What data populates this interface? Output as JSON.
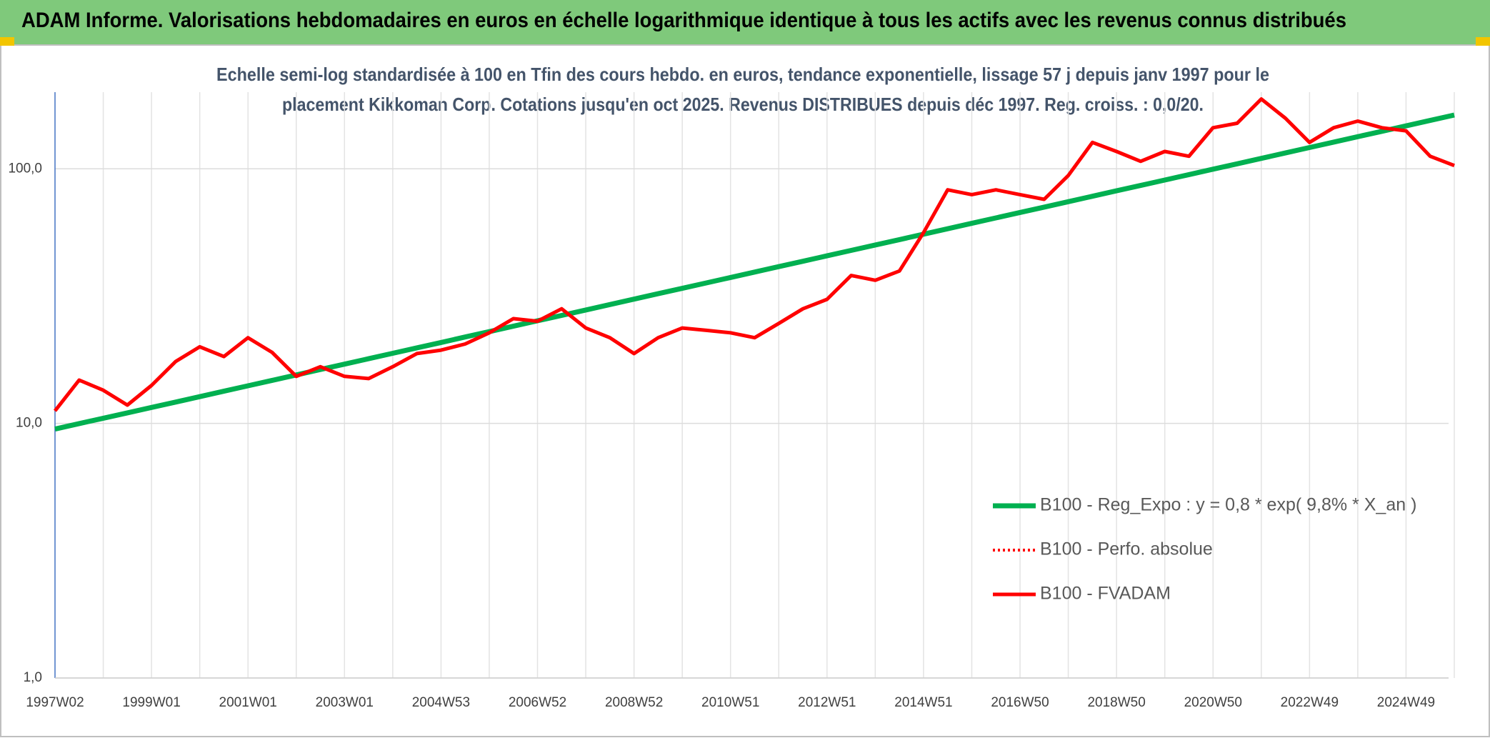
{
  "chart_data": {
    "type": "line",
    "title": "ADAM Informe. Valorisations hebdomadaires en euros en échelle logarithmique identique à tous les actifs avec les revenus connus distribués",
    "subtitle": [
      "Echelle semi-log standardisée à 100 en Tfin des cours hebdo. en euros, tendance exponentielle, lissage 57 j depuis janv 1997 pour le",
      "placement Kikkoman Corp. Cotations jusqu'en oct 2025. Revenus DISTRIBUES depuis déc 1997. Reg. croiss. : 0,0/20."
    ],
    "categories": [
      "1997W02",
      null,
      null,
      null,
      "1999W01",
      null,
      null,
      null,
      "2001W01",
      null,
      null,
      null,
      "2003W01",
      null,
      null,
      null,
      "2004W53",
      null,
      null,
      null,
      "2006W52",
      null,
      null,
      null,
      "2008W52",
      null,
      null,
      null,
      "2010W51",
      null,
      null,
      null,
      "2012W51",
      null,
      null,
      null,
      "2014W51",
      null,
      null,
      null,
      "2016W50",
      null,
      null,
      null,
      "2018W50",
      null,
      null,
      null,
      "2020W50",
      null,
      null,
      null,
      "2022W49",
      null,
      null,
      null,
      "2024W49",
      null,
      null
    ],
    "series": [
      {
        "name": "B100 - Reg_Expo : y = 0,8 * exp( 9,8% *  X_an )",
        "color": "#00b050",
        "style": "solid",
        "values": [
          9.5,
          9.98,
          10.48,
          11.0,
          11.55,
          12.13,
          12.74,
          13.38,
          14.05,
          14.76,
          15.5,
          16.28,
          17.09,
          17.95,
          18.85,
          19.8,
          20.79,
          21.84,
          22.93,
          24.08,
          25.29,
          26.56,
          27.89,
          29.29,
          30.76,
          32.31,
          33.93,
          35.63,
          37.42,
          39.3,
          41.27,
          43.34,
          45.52,
          47.8,
          50.2,
          52.72,
          55.37,
          58.15,
          61.06,
          64.13,
          67.35,
          70.73,
          74.28,
          78.0,
          81.92,
          86.03,
          90.35,
          94.88,
          99.64,
          104.6,
          109.9,
          115.4,
          121.2,
          127.3,
          133.7,
          140.4,
          147.4,
          154.8,
          162.6
        ]
      },
      {
        "name": "B100 - Perfo. absolue",
        "color": "#ff0000",
        "style": "dotted",
        "values": [
          11.2,
          14.8,
          13.5,
          11.8,
          14.1,
          17.5,
          20,
          18.3,
          21.7,
          19,
          15.3,
          16.7,
          15.3,
          15,
          16.7,
          18.8,
          19.4,
          20.5,
          22.7,
          25.8,
          25.2,
          28.2,
          23.7,
          21.7,
          18.8,
          21.7,
          23.7,
          23.2,
          22.7,
          21.7,
          24.7,
          28.2,
          30.7,
          38.1,
          36.5,
          39.7,
          56.1,
          82.7,
          79.2,
          82.7,
          79.2,
          75.9,
          94.1,
          127,
          117,
          107,
          117,
          112,
          145,
          151,
          188,
          158,
          127,
          145,
          154,
          145,
          141,
          112,
          103
        ]
      },
      {
        "name": "B100 - FVADAM",
        "color": "#ff0000",
        "style": "solid",
        "values": [
          11.2,
          14.8,
          13.5,
          11.8,
          14.1,
          17.5,
          20,
          18.3,
          21.7,
          19,
          15.3,
          16.7,
          15.3,
          15,
          16.7,
          18.8,
          19.4,
          20.5,
          22.7,
          25.8,
          25.2,
          28.2,
          23.7,
          21.7,
          18.8,
          21.7,
          23.7,
          23.2,
          22.7,
          21.7,
          24.7,
          28.2,
          30.7,
          38.1,
          36.5,
          39.7,
          56.1,
          82.7,
          79.2,
          82.7,
          79.2,
          75.9,
          94.1,
          127,
          117,
          107,
          117,
          112,
          145,
          151,
          188,
          158,
          127,
          145,
          154,
          145,
          141,
          112,
          103
        ]
      }
    ],
    "ylim": [
      1,
      200
    ],
    "yticks": [
      {
        "value": 1,
        "label": "1,0"
      },
      {
        "value": 10,
        "label": "10,0"
      },
      {
        "value": 100,
        "label": "100,0"
      }
    ],
    "log_scale": true,
    "grid": true,
    "legend": "lower right"
  }
}
